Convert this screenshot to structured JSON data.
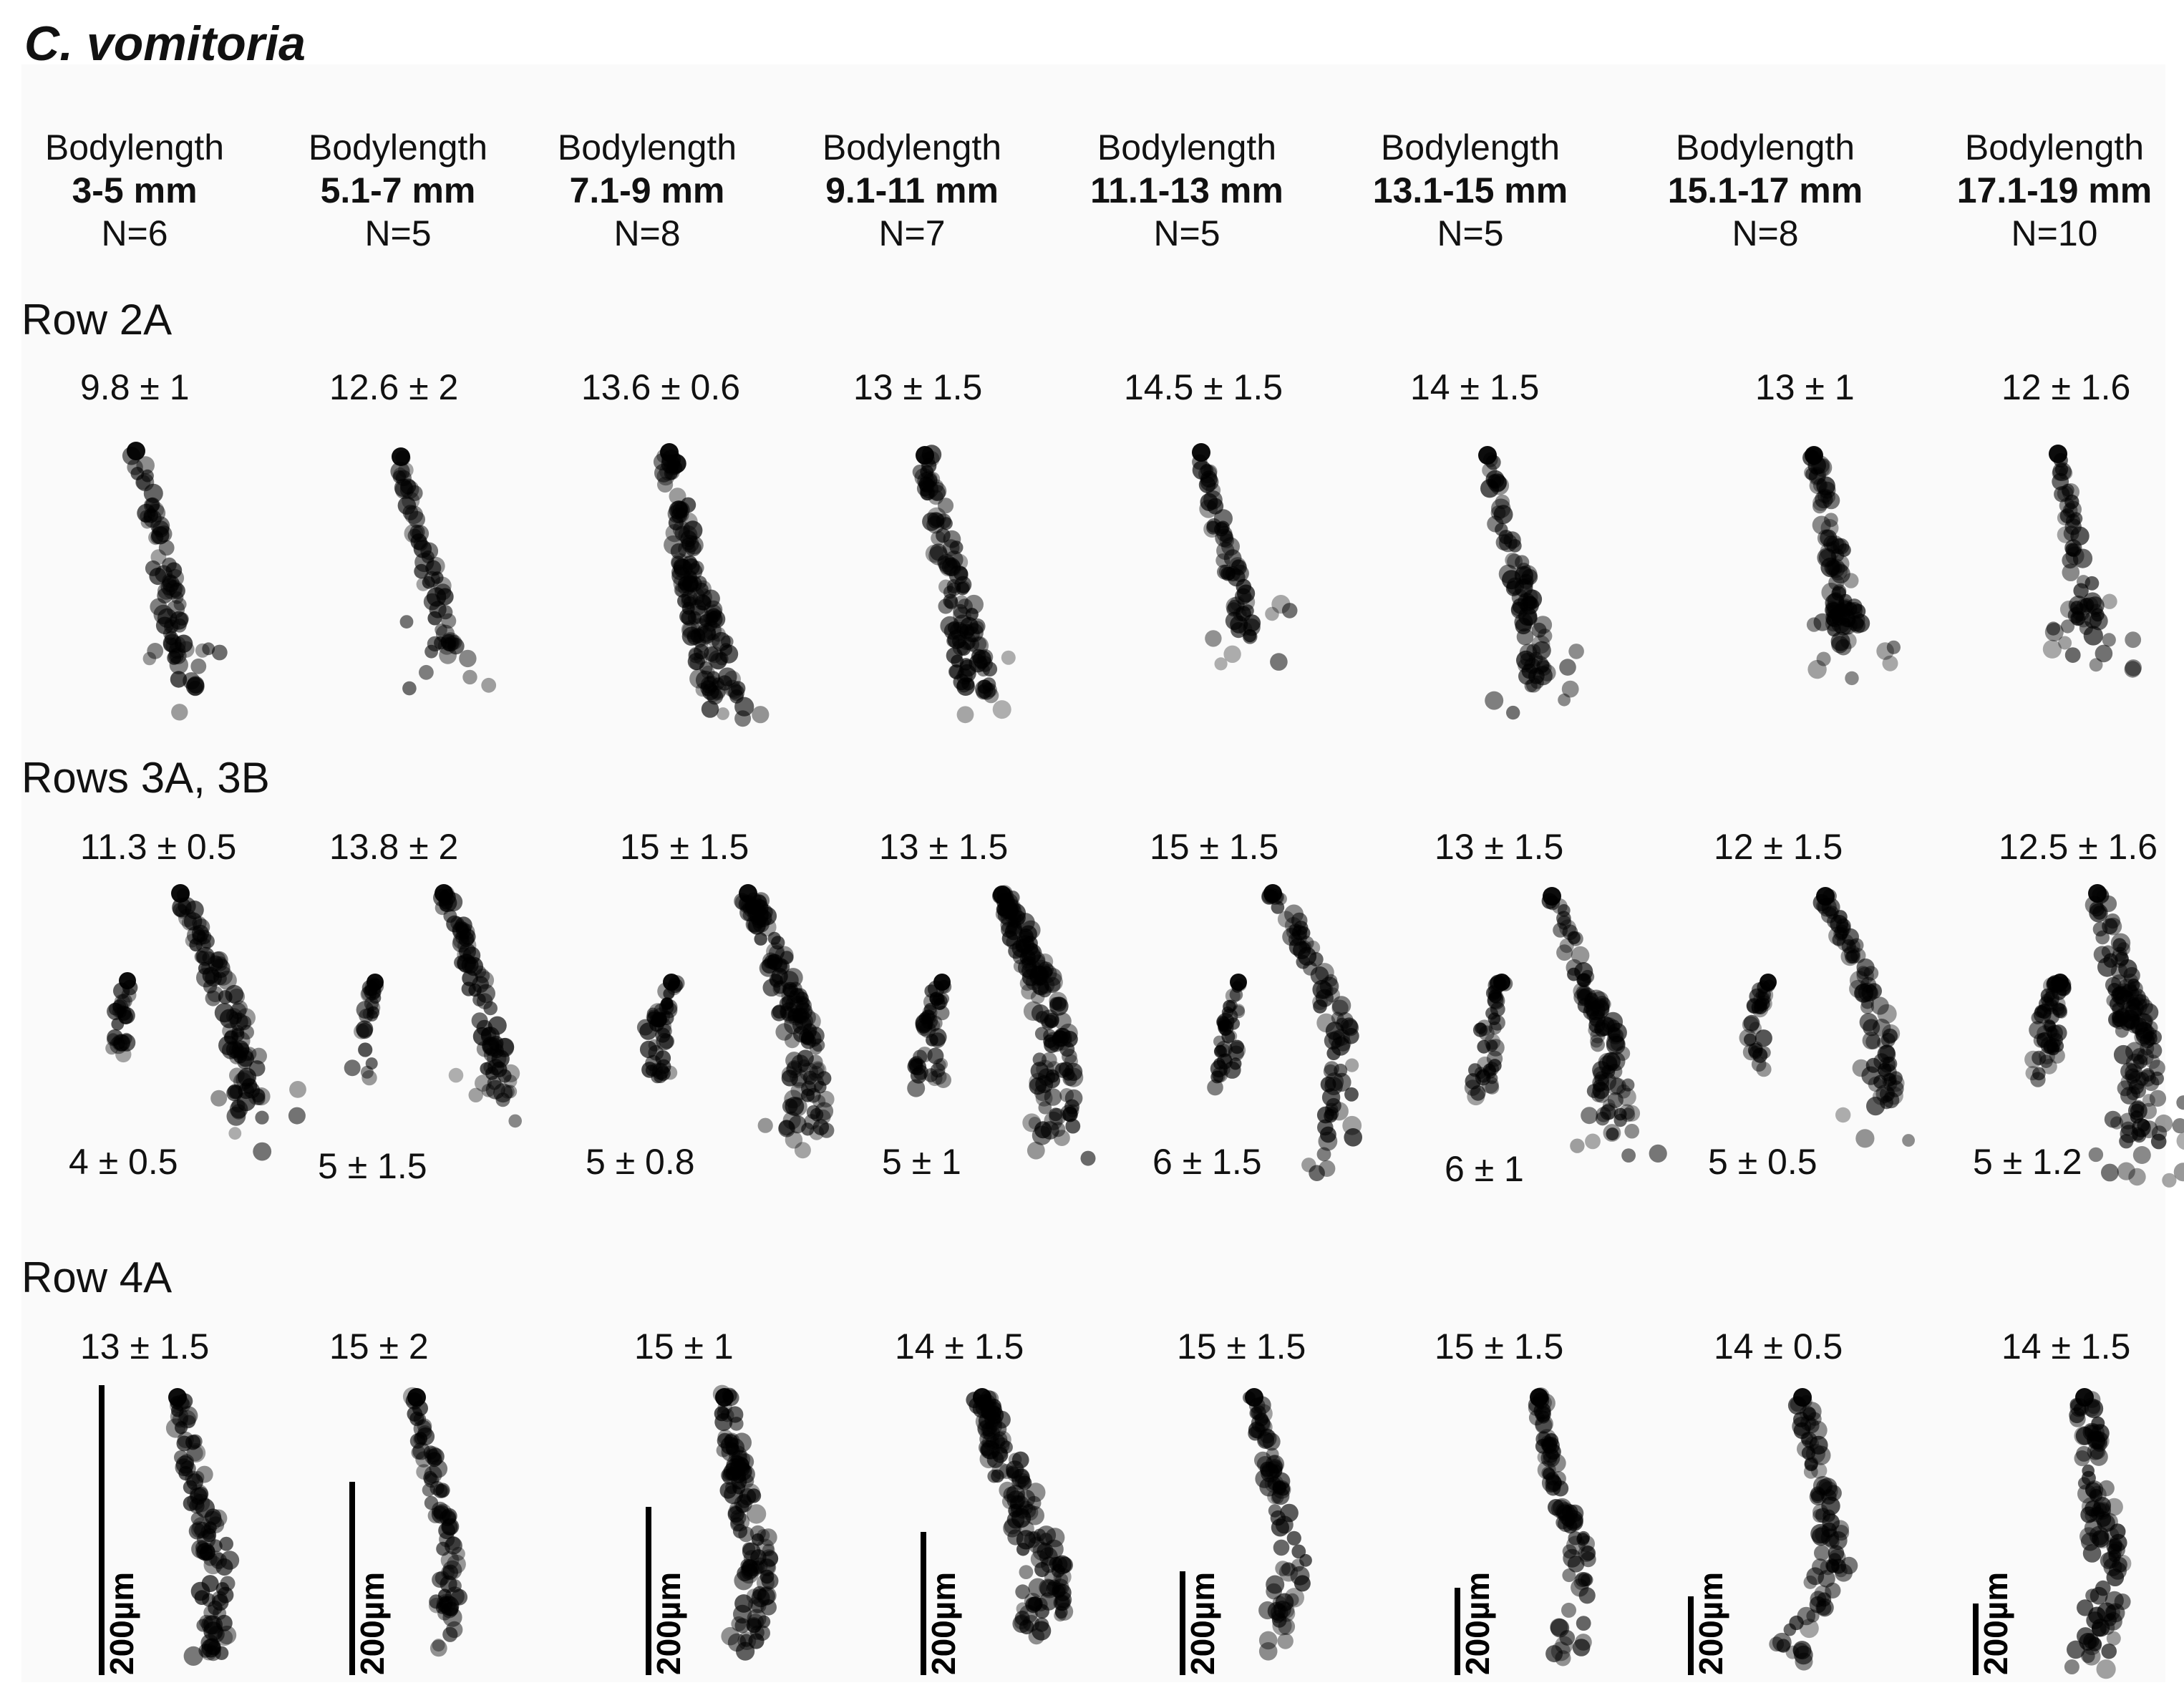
{
  "title": "C. vomitoria",
  "columns": [
    {
      "label": "Bodylength",
      "range": "3-5 mm",
      "n": "N=6"
    },
    {
      "label": "Bodylength",
      "range": "5.1-7 mm",
      "n": "N=5"
    },
    {
      "label": "Bodylength",
      "range": "7.1-9 mm",
      "n": "N=8"
    },
    {
      "label": "Bodylength",
      "range": "9.1-11 mm",
      "n": "N=7"
    },
    {
      "label": "Bodylength",
      "range": "11.1-13 mm",
      "n": "N=5"
    },
    {
      "label": "Bodylength",
      "range": "13.1-15 mm",
      "n": "N=5"
    },
    {
      "label": "Bodylength",
      "range": "15.1-17 mm",
      "n": "N=8"
    },
    {
      "label": "Bodylength",
      "range": "17.1-19 mm",
      "n": "N=10"
    }
  ],
  "rows": {
    "row2a": {
      "title": "Row 2A",
      "values": [
        "9.8 ± 1",
        "12.6 ± 2",
        "13.6 ± 0.6",
        "13 ± 1.5",
        "14.5 ± 1.5",
        "14 ± 1.5",
        "13 ± 1",
        "12 ± 1.6"
      ]
    },
    "row3": {
      "title": "Rows 3A, 3B",
      "values_3b": [
        "11.3 ± 0.5",
        "13.8 ± 2",
        "15 ± 1.5",
        "13 ± 1.5",
        "15 ± 1.5",
        "13 ± 1.5",
        "12 ± 1.5",
        "12.5 ± 1.6"
      ],
      "values_3a": [
        "4 ± 0.5",
        "5 ± 1.5",
        "5 ± 0.8",
        "5 ± 1",
        "6 ± 1.5",
        "6 ± 1",
        "5 ± 0.5",
        "5 ± 1.2"
      ]
    },
    "row4a": {
      "title": "Row 4A",
      "values": [
        "13 ± 1.5",
        "15 ± 2",
        "15 ± 1",
        "14 ± 1.5",
        "15 ± 1.5",
        "15 ± 1.5",
        "14 ± 0.5",
        "14 ± 1.5"
      ]
    }
  },
  "scale_bar_label": "200µm",
  "colors": {
    "dot": "#000000",
    "background": "#fafafa"
  }
}
